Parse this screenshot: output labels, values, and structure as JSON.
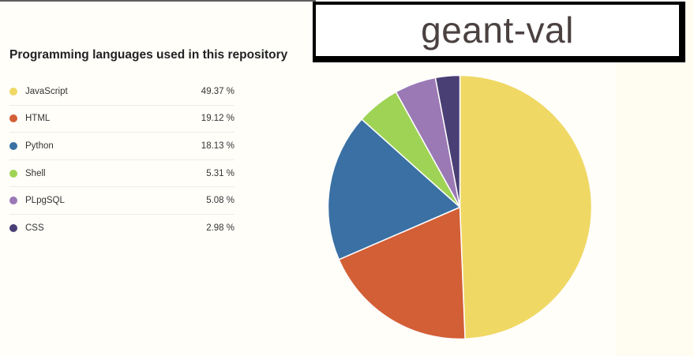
{
  "heading": "Programming languages used in this repository",
  "overlay": {
    "label": "geant-val"
  },
  "colors": {
    "JavaScript": "#f0d865",
    "HTML": "#d35f36",
    "Python": "#3a70a3",
    "Shell": "#9fd355",
    "PLpgSQL": "#9b79b5",
    "CSS": "#4a3f74"
  },
  "chart_data": {
    "type": "pie",
    "title": "Programming languages used in this repository",
    "categories": [
      "JavaScript",
      "HTML",
      "Python",
      "Shell",
      "PLpgSQL",
      "CSS"
    ],
    "values": [
      49.37,
      19.12,
      18.13,
      5.31,
      5.08,
      2.98
    ],
    "value_labels": [
      "49.37 %",
      "19.12 %",
      "18.13 %",
      "5.31 %",
      "5.08 %",
      "2.98 %"
    ],
    "legend": "left"
  }
}
